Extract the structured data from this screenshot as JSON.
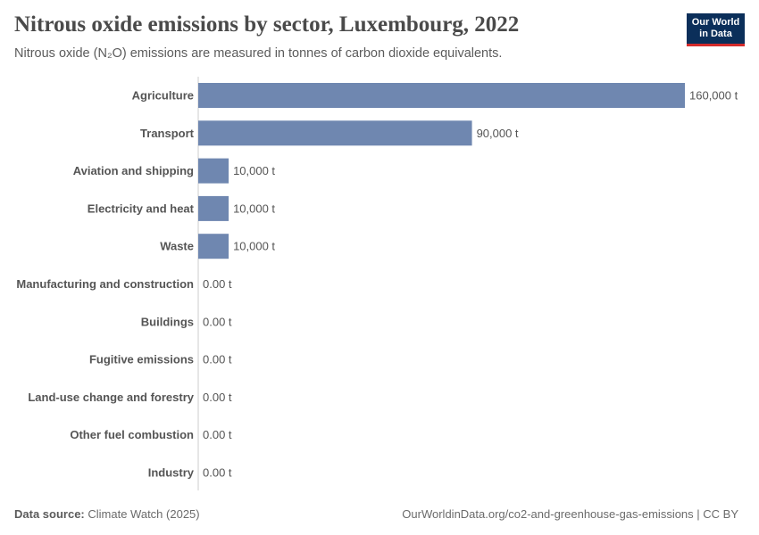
{
  "header": {
    "title": "Nitrous oxide emissions by sector, Luxembourg, 2022",
    "subtitle": "Nitrous oxide (N₂O) emissions are measured in tonnes of carbon dioxide equivalents."
  },
  "logo": {
    "line1": "Our World",
    "line2": "in Data",
    "background": "#0b2f5a",
    "accent": "#d42b2b"
  },
  "footer": {
    "source_label": "Data source:",
    "source_text": "Climate Watch (2025)",
    "url": "OurWorldinData.org/co2-and-greenhouse-gas-emissions | CC BY"
  },
  "chart_data": {
    "type": "bar",
    "orientation": "horizontal",
    "categories": [
      "Agriculture",
      "Transport",
      "Aviation and shipping",
      "Electricity and heat",
      "Waste",
      "Manufacturing and construction",
      "Buildings",
      "Fugitive emissions",
      "Land-use change and forestry",
      "Other fuel combustion",
      "Industry"
    ],
    "values": [
      160000,
      90000,
      10000,
      10000,
      10000,
      0,
      0,
      0,
      0,
      0,
      0
    ],
    "value_labels": [
      "160,000 t",
      "90,000 t",
      "10,000 t",
      "10,000 t",
      "10,000 t",
      "0.00 t",
      "0.00 t",
      "0.00 t",
      "0.00 t",
      "0.00 t",
      "0.00 t"
    ],
    "bar_color": "#6f87b0",
    "xlim": [
      0,
      160000
    ],
    "grid": false
  }
}
